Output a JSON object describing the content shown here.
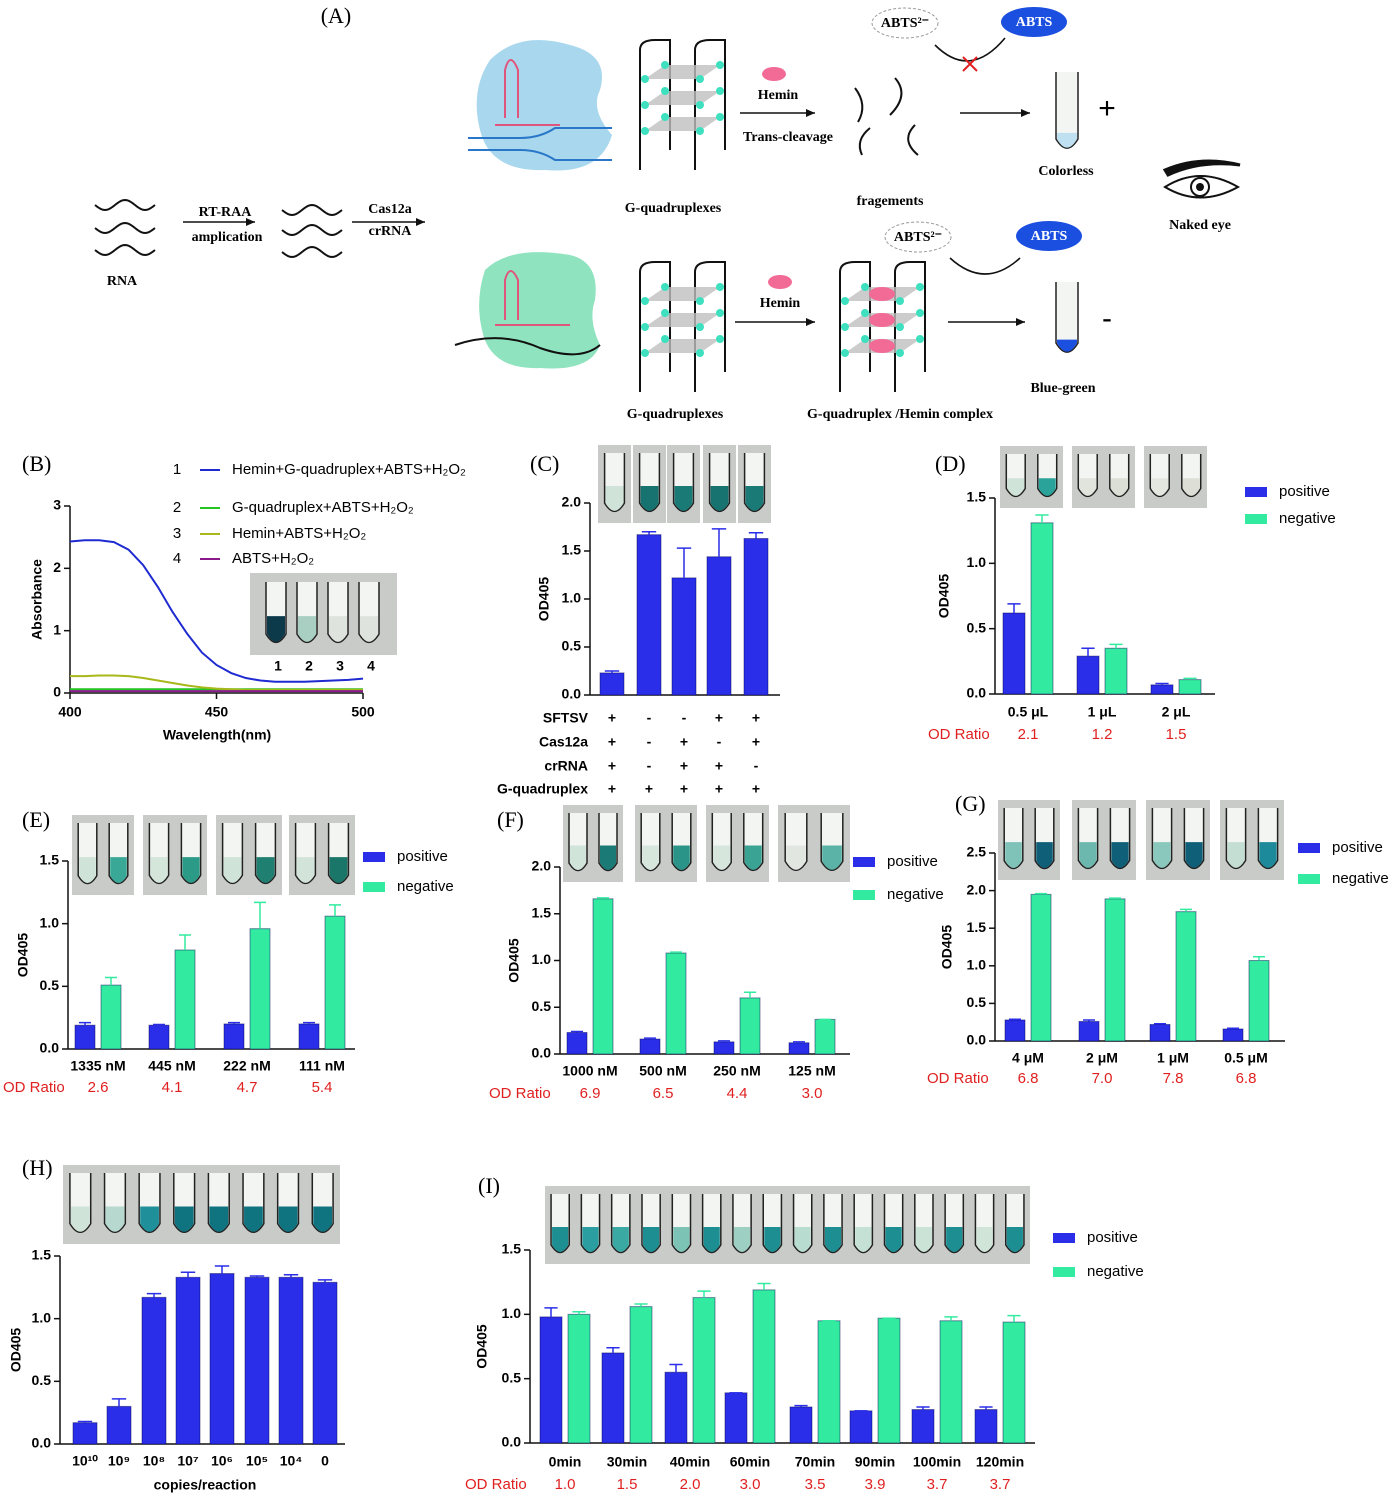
{
  "diagram": {
    "panel": "(A)",
    "input_label": "RNA",
    "amplification_top": "RT-RAA",
    "amplification_bottom": "amplication",
    "cas_top": "Cas12a",
    "cas_bottom": "crRNA",
    "top_branch": {
      "quadruplex": "G-quadruplexes",
      "hemin": "Hemin",
      "cleavage": "Trans-cleavage",
      "fragments": "fragements",
      "substrate": "ABTS²⁻",
      "product": "ABTS",
      "result": "Colorless",
      "sign": "+"
    },
    "bottom_branch": {
      "quadruplex": "G-quadruplexes",
      "hemin": "Hemin",
      "complex": "G-quadruplex /Hemin complex",
      "substrate": "ABTS²⁻",
      "product": "ABTS",
      "result": "Blue-green",
      "sign": "-"
    },
    "readout": "Naked eye"
  },
  "chart_data": [
    {
      "panel": "(B)",
      "type": "line",
      "x_label": "Wavelength(nm)",
      "y_label": "Absorbance",
      "x": [
        400,
        405,
        410,
        415,
        420,
        425,
        430,
        435,
        440,
        445,
        450,
        455,
        460,
        465,
        470,
        475,
        480,
        485,
        490,
        495,
        500
      ],
      "xlim": [
        400,
        500
      ],
      "xticks": [
        400,
        450,
        500
      ],
      "ylim": [
        0,
        3
      ],
      "yticks": [
        0,
        1,
        2,
        3
      ],
      "legend_numbers": [
        "1",
        "2",
        "3",
        "4"
      ],
      "image_labels": [
        "1",
        "2",
        "3",
        "4"
      ],
      "series": [
        {
          "name": "Hemin+G-quadruplex+ABTS+H₂O₂",
          "color": "#1f2bd1",
          "values": [
            2.43,
            2.45,
            2.45,
            2.42,
            2.3,
            2.05,
            1.7,
            1.3,
            0.95,
            0.65,
            0.45,
            0.32,
            0.24,
            0.2,
            0.18,
            0.18,
            0.18,
            0.19,
            0.2,
            0.21,
            0.23
          ]
        },
        {
          "name": "G-quadruplex+ABTS+H₂O₂",
          "color": "#22c522",
          "values": [
            0.06,
            0.06,
            0.06,
            0.06,
            0.06,
            0.06,
            0.06,
            0.06,
            0.06,
            0.06,
            0.06,
            0.06,
            0.06,
            0.06,
            0.06,
            0.06,
            0.06,
            0.06,
            0.06,
            0.06,
            0.06
          ]
        },
        {
          "name": "Hemin+ABTS+H₂O₂",
          "color": "#a8b81a",
          "values": [
            0.27,
            0.27,
            0.28,
            0.28,
            0.27,
            0.24,
            0.2,
            0.16,
            0.12,
            0.09,
            0.07,
            0.06,
            0.05,
            0.05,
            0.05,
            0.05,
            0.05,
            0.05,
            0.05,
            0.05,
            0.05
          ]
        },
        {
          "name": "ABTS+H₂O₂",
          "color": "#8a1a8a",
          "values": [
            0.03,
            0.03,
            0.03,
            0.03,
            0.03,
            0.03,
            0.03,
            0.03,
            0.03,
            0.03,
            0.03,
            0.03,
            0.03,
            0.03,
            0.03,
            0.03,
            0.03,
            0.03,
            0.03,
            0.03,
            0.03
          ]
        }
      ]
    },
    {
      "panel": "(C)",
      "type": "bar",
      "y_label": "OD405",
      "ylim": [
        0,
        2
      ],
      "yticks": [
        {
          "value": 0,
          "label": "0.0"
        },
        0.5,
        {
          "value": 1,
          "label": "1.0"
        },
        1.5,
        {
          "value": 2,
          "label": "2.0"
        }
      ],
      "series": [
        {
          "color": "#2a2ee8",
          "values": [
            0.23,
            1.67,
            1.22,
            1.44,
            1.63
          ],
          "errors": [
            0.02,
            0.03,
            0.31,
            0.29,
            0.06
          ]
        }
      ],
      "conditions": [
        {
          "name": "SFTSV",
          "values": [
            "+",
            "-",
            "-",
            "+",
            "+"
          ]
        },
        {
          "name": "Cas12a",
          "values": [
            "+",
            "-",
            "+",
            "-",
            "+"
          ]
        },
        {
          "name": "crRNA",
          "values": [
            "+",
            "-",
            "+",
            "+",
            "-"
          ]
        },
        {
          "name": "G-quadruplex",
          "values": [
            "+",
            "+",
            "+",
            "+",
            "+"
          ]
        }
      ]
    },
    {
      "panel": "(D)",
      "type": "bar",
      "y_label": "OD405",
      "categories": [
        "0.5 μL",
        "1 μL",
        "2 μL"
      ],
      "ylim": [
        0,
        1.5
      ],
      "yticks": [
        {
          "value": 0,
          "label": "0.0"
        },
        0.5,
        {
          "value": 1,
          "label": "1.0"
        },
        1.5
      ],
      "ratio_label": "OD Ratio",
      "od_ratio": [
        "2.1",
        "1.2",
        "1.5"
      ],
      "series": [
        {
          "name": "positive",
          "color": "#2a2ee8",
          "values": [
            0.62,
            0.29,
            0.07
          ],
          "errors": [
            0.07,
            0.06,
            0.01
          ]
        },
        {
          "name": "negative",
          "color": "#33eba0",
          "values": [
            1.31,
            0.35,
            0.11
          ],
          "errors": [
            0.06,
            0.03,
            0.01
          ]
        }
      ]
    },
    {
      "panel": "(E)",
      "type": "bar",
      "y_label": "OD405",
      "categories": [
        "1335 nM",
        "445 nM",
        "222 nM",
        "111 nM"
      ],
      "ylim": [
        0,
        1.5
      ],
      "yticks": [
        {
          "value": 0,
          "label": "0.0"
        },
        0.5,
        {
          "value": 1,
          "label": "1.0"
        },
        1.5
      ],
      "ratio_label": "OD Ratio",
      "od_ratio": [
        "2.6",
        "4.1",
        "4.7",
        "5.4"
      ],
      "series": [
        {
          "name": "positive",
          "color": "#2a2ee8",
          "values": [
            0.19,
            0.19,
            0.2,
            0.2
          ],
          "errors": [
            0.02,
            0.005,
            0.01,
            0.01
          ]
        },
        {
          "name": "negative",
          "color": "#33eba0",
          "values": [
            0.51,
            0.79,
            0.96,
            1.06
          ],
          "errors": [
            0.06,
            0.12,
            0.21,
            0.09
          ]
        }
      ]
    },
    {
      "panel": "(F)",
      "type": "bar",
      "y_label": "OD405",
      "categories": [
        "1000 nM",
        "500 nM",
        "250 nM",
        "125 nM"
      ],
      "ylim": [
        0,
        2
      ],
      "yticks": [
        {
          "value": 0,
          "label": "0.0"
        },
        0.5,
        {
          "value": 1,
          "label": "1.0"
        },
        1.5,
        {
          "value": 2,
          "label": "2.0"
        }
      ],
      "ratio_label": "OD Ratio",
      "od_ratio": [
        "6.9",
        "6.5",
        "4.4",
        "3.0"
      ],
      "series": [
        {
          "name": "positive",
          "color": "#2a2ee8",
          "values": [
            0.23,
            0.16,
            0.13,
            0.12
          ],
          "errors": [
            0.01,
            0.01,
            0.01,
            0.01
          ]
        },
        {
          "name": "negative",
          "color": "#33eba0",
          "values": [
            1.66,
            1.08,
            0.6,
            0.37
          ],
          "errors": [
            0.01,
            0.01,
            0.06,
            0
          ]
        }
      ]
    },
    {
      "panel": "(G)",
      "type": "bar",
      "y_label": "OD405",
      "categories": [
        "4 μM",
        "2 μM",
        "1 μM",
        "0.5 μM"
      ],
      "ylim": [
        0,
        2.5
      ],
      "yticks": [
        {
          "value": 0,
          "label": "0.0"
        },
        0.5,
        {
          "value": 1,
          "label": "1.0"
        },
        1.5,
        {
          "value": 2,
          "label": "2.0"
        },
        2.5
      ],
      "ratio_label": "OD Ratio",
      "od_ratio": [
        "6.8",
        "7.0",
        "7.8",
        "6.8"
      ],
      "series": [
        {
          "name": "positive",
          "color": "#2a2ee8",
          "values": [
            0.28,
            0.26,
            0.22,
            0.16
          ],
          "errors": [
            0.01,
            0.02,
            0.01,
            0.01
          ]
        },
        {
          "name": "negative",
          "color": "#33eba0",
          "values": [
            1.95,
            1.89,
            1.72,
            1.07
          ],
          "errors": [
            0.01,
            0.01,
            0.03,
            0.05
          ]
        }
      ]
    },
    {
      "panel": "(H)",
      "type": "bar",
      "y_label": "OD405",
      "x_label": "copies/reaction",
      "categories": [
        "10¹⁰",
        "10⁹",
        "10⁸",
        "10⁷",
        "10⁶",
        "10⁵",
        "10⁴",
        "0"
      ],
      "ylim": [
        0,
        1.5
      ],
      "yticks": [
        {
          "value": 0,
          "label": "0.0"
        },
        0.5,
        {
          "value": 1,
          "label": "1.0"
        },
        1.5
      ],
      "series": [
        {
          "color": "#2a2ee8",
          "values": [
            0.17,
            0.3,
            1.17,
            1.33,
            1.36,
            1.33,
            1.33,
            1.29
          ],
          "errors": [
            0.01,
            0.06,
            0.03,
            0.04,
            0.06,
            0.01,
            0.02,
            0.02
          ]
        }
      ]
    },
    {
      "panel": "(I)",
      "type": "bar",
      "y_label": "OD405",
      "categories": [
        "0min",
        "30min",
        "40min",
        "60min",
        "70min",
        "90min",
        "100min",
        "120min"
      ],
      "ylim": [
        0,
        1.5
      ],
      "yticks": [
        {
          "value": 0,
          "label": "0.0"
        },
        0.5,
        {
          "value": 1,
          "label": "1.0"
        },
        1.5
      ],
      "ratio_label": "OD Ratio",
      "od_ratio": [
        "1.0",
        "1.5",
        "2.0",
        "3.0",
        "3.5",
        "3.9",
        "3.7",
        "3.7"
      ],
      "series": [
        {
          "name": "positive",
          "color": "#2a2ee8",
          "values": [
            0.98,
            0.7,
            0.55,
            0.39,
            0.28,
            0.25,
            0.26,
            0.26
          ],
          "errors": [
            0.07,
            0.04,
            0.06,
            0,
            0.01,
            0,
            0.02,
            0.02
          ]
        },
        {
          "name": "negative",
          "color": "#33eba0",
          "values": [
            1.0,
            1.06,
            1.13,
            1.19,
            0.95,
            0.97,
            0.95,
            0.94
          ],
          "errors": [
            0.02,
            0.02,
            0.05,
            0.05,
            0,
            0,
            0.03,
            0.05
          ]
        }
      ]
    }
  ]
}
